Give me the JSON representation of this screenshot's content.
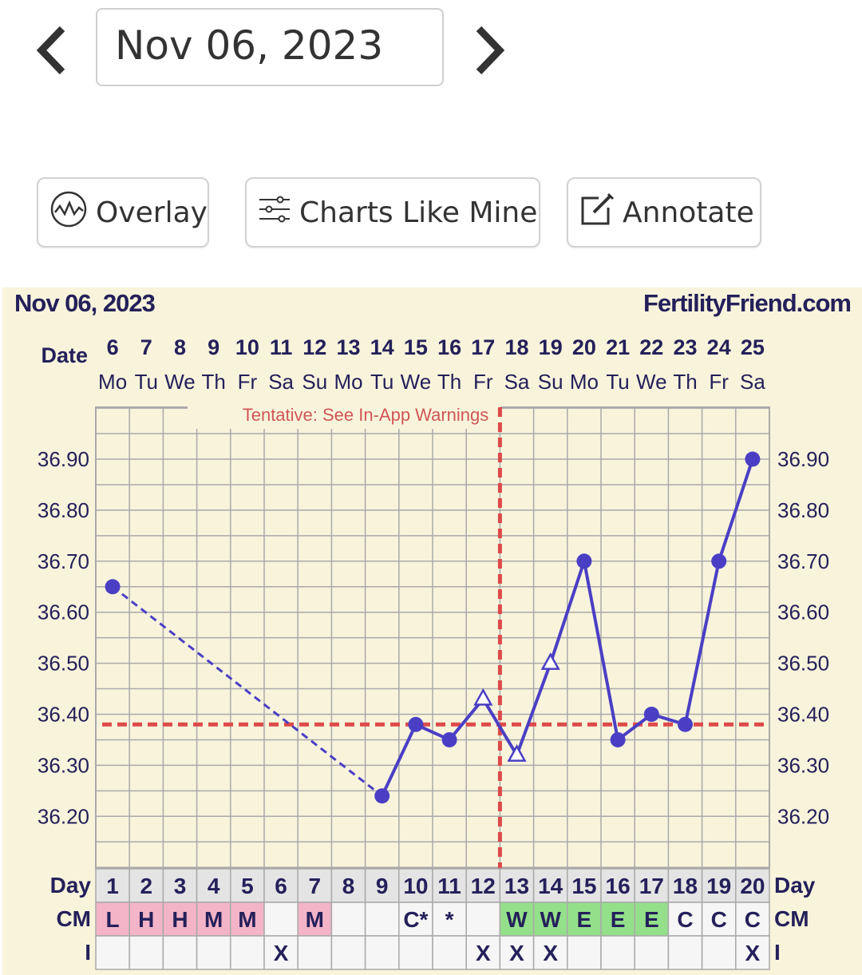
{
  "nav": {
    "prev_icon": "chevron-left-icon",
    "next_icon": "chevron-right-icon",
    "date_value": "Nov 06, 2023"
  },
  "toolbar": {
    "overlay_label": "Overlay",
    "overlay_icon": "wave-circle-icon",
    "charts_like_label": "Charts Like Mine",
    "charts_like_icon": "sliders-icon",
    "annotate_label": "Annotate",
    "annotate_icon": "edit-icon"
  },
  "chart_header": {
    "date": "Nov 06, 2023",
    "site": "FertilityFriend.com"
  },
  "chart_data": {
    "type": "line",
    "date_label": "Date",
    "dates": [
      "6",
      "7",
      "8",
      "9",
      "10",
      "11",
      "12",
      "13",
      "14",
      "15",
      "16",
      "17",
      "18",
      "19",
      "20",
      "21",
      "22",
      "23",
      "24",
      "25"
    ],
    "weekdays": [
      "Mo",
      "Tu",
      "We",
      "Th",
      "Fr",
      "Sa",
      "Su",
      "Mo",
      "Tu",
      "We",
      "Th",
      "Fr",
      "Sa",
      "Su",
      "Mo",
      "Tu",
      "We",
      "Th",
      "Fr",
      "Sa"
    ],
    "y_ticks": [
      "36.90",
      "36.80",
      "36.70",
      "36.60",
      "36.50",
      "36.40",
      "36.30",
      "36.20"
    ],
    "ylim": [
      36.1,
      37.0
    ],
    "temperatures": [
      36.65,
      null,
      null,
      null,
      null,
      null,
      null,
      null,
      36.24,
      36.38,
      36.35,
      36.43,
      36.32,
      36.5,
      36.7,
      36.35,
      36.4,
      36.38,
      36.7,
      36.9
    ],
    "point_markers": [
      "dot",
      "",
      "",
      "",
      "",
      "",
      "",
      "",
      "dot",
      "dot",
      "dot",
      "triangle",
      "triangle",
      "triangle",
      "dot",
      "dot",
      "dot",
      "dot",
      "dot",
      "dot"
    ],
    "dashed_segment": [
      0,
      8
    ],
    "coverline": 36.38,
    "ovulation_day_index": 12,
    "warning": "Tentative: See In-App Warnings",
    "day_label": "Day",
    "days": [
      "1",
      "2",
      "3",
      "4",
      "5",
      "6",
      "7",
      "8",
      "9",
      "10",
      "11",
      "12",
      "13",
      "14",
      "15",
      "16",
      "17",
      "18",
      "19",
      "20"
    ],
    "cm_label": "CM",
    "cm": [
      "L",
      "H",
      "H",
      "M",
      "M",
      "",
      "M",
      "",
      "",
      "C*",
      "*",
      "",
      "W",
      "W",
      "E",
      "E",
      "E",
      "C",
      "C",
      "C"
    ],
    "cm_colors": [
      "#f4b4c8",
      "#f4b4c8",
      "#f4b4c8",
      "#f4b4c8",
      "#f4b4c8",
      "",
      "#f4b4c8",
      "",
      "",
      "",
      "",
      "",
      "#94e08a",
      "#94e08a",
      "#94e08a",
      "#94e08a",
      "#94e08a",
      "",
      "",
      ""
    ],
    "i_label": "I",
    "intercourse": [
      "",
      "",
      "",
      "",
      "",
      "X",
      "",
      "",
      "",
      "",
      "",
      "X",
      "X",
      "X",
      "",
      "",
      "",
      "",
      "",
      "X"
    ],
    "colors": {
      "line": "#4a3fc4",
      "marker": "#4a3fc4",
      "coverline": "#dd4a4a",
      "grid": "#a9a9a9",
      "background": "#f8f4dc",
      "label": "#24205a"
    }
  }
}
